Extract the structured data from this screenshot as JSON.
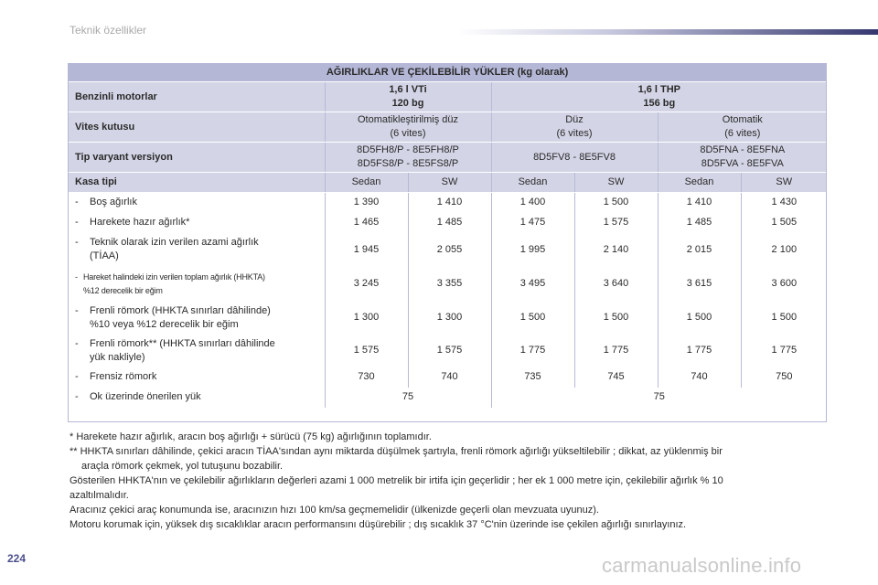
{
  "header": {
    "section_title": "Teknik özellikler"
  },
  "page_number": "224",
  "watermark": "carmanualsonline.info",
  "table": {
    "title": "AĞIRLIKLAR VE ÇEKİLEBİLİR YÜKLER (kg olarak)",
    "engine_label": "Benzinli motorlar",
    "engine_1_line1": "1,6 l VTi",
    "engine_1_line2": "120 bg",
    "engine_2_line1": "1,6 l THP",
    "engine_2_line2": "156 bg",
    "gearbox_label": "Vites kutusu",
    "gearbox_1_line1": "Otomatikleştirilmiş düz",
    "gearbox_1_line2": "(6 vites)",
    "gearbox_2_line1": "Düz",
    "gearbox_2_line2": "(6 vites)",
    "gearbox_3_line1": "Otomatik",
    "gearbox_3_line2": "(6 vites)",
    "variant_label": "Tip varyant versiyon",
    "variant_1_line1": "8D5FH8/P - 8E5FH8/P",
    "variant_1_line2": "8D5FS8/P - 8E5FS8/P",
    "variant_2": "8D5FV8 - 8E5FV8",
    "variant_3_line1": "8D5FNA - 8E5FNA",
    "variant_3_line2": "8D5FVA - 8E5FVA",
    "body_label": "Kasa tipi",
    "body_types": [
      "Sedan",
      "SW",
      "Sedan",
      "SW",
      "Sedan",
      "SW"
    ],
    "rows": [
      {
        "dash": "-",
        "label_line1": "Boş ağırlık",
        "label_line2": "",
        "values": [
          "1 390",
          "1 410",
          "1 400",
          "1 500",
          "1 410",
          "1 430"
        ]
      },
      {
        "dash": "-",
        "label_line1": "Harekete hazır ağırlık*",
        "label_line2": "",
        "values": [
          "1 465",
          "1 485",
          "1 475",
          "1 575",
          "1 485",
          "1 505"
        ]
      },
      {
        "dash": "-",
        "label_line1": "Teknik olarak izin verilen azami ağırlık",
        "label_line2": "(TİAA)",
        "values": [
          "1 945",
          "2 055",
          "1 995",
          "2 140",
          "2 015",
          "2 100"
        ]
      },
      {
        "dash": "-",
        "label_line1": "Hareket halindeki izin verilen toplam ağırlık (HHKTA)",
        "label_line2": "%12 derecelik bir eğim",
        "values": [
          "3 245",
          "3 355",
          "3 495",
          "3 640",
          "3 615",
          "3 600"
        ]
      },
      {
        "dash": "-",
        "label_line1": "Frenli römork (HHKTA sınırları dâhilinde)",
        "label_line2": "%10 veya %12 derecelik bir eğim",
        "values": [
          "1 300",
          "1 300",
          "1 500",
          "1 500",
          "1 500",
          "1 500"
        ]
      },
      {
        "dash": "-",
        "label_line1": "Frenli römork** (HHKTA sınırları dâhilinde",
        "label_line2": "yük nakliyle)",
        "values": [
          "1 575",
          "1 575",
          "1 775",
          "1 775",
          "1 775",
          "1 775"
        ]
      },
      {
        "dash": "-",
        "label_line1": "Frensiz römork",
        "label_line2": "",
        "values": [
          "730",
          "740",
          "735",
          "745",
          "740",
          "750"
        ]
      }
    ],
    "last_row": {
      "dash": "-",
      "label": "Ok üzerinde önerilen yük",
      "value_1": "75",
      "value_2": "75"
    }
  },
  "notes": {
    "line1": "* Harekete hazır ağırlık, aracın boş ağırlığı + sürücü (75 kg) ağırlığının toplamıdır.",
    "line2a": "** HHKTA sınırları dâhilinde, çekici aracın TİAA'sından aynı miktarda düşülmek şartıyla, frenli römork ağırlığı yükseltilebilir ; dikkat, az yüklenmiş bir",
    "line2b": "araçla römork çekmek, yol tutuşunu bozabilir.",
    "line3a": "Gösterilen HHKTA'nın ve çekilebilir ağırlıkların değerleri azami 1 000 metrelik bir irtifa için geçerlidir ; her ek 1 000 metre için, çekilebilir ağırlık % 10",
    "line3b": "azaltılmalıdır.",
    "line4": "Aracınız çekici araç konumunda ise, aracınızın hızı 100 km/sa geçmemelidir (ülkenizde geçerli olan mevzuata uyunuz).",
    "line5": "Motoru korumak için, yüksek dış sıcaklıklar aracın performansını düşürebilir ; dış sıcaklık 37 °C'nin üzerinde ise çekilen ağırlığı sınırlayınız."
  },
  "colors": {
    "header_row": "#b4b7d6",
    "label_rows": "#d3d5e6",
    "accent": "#35376f",
    "page_number": "#4b4f8a"
  }
}
